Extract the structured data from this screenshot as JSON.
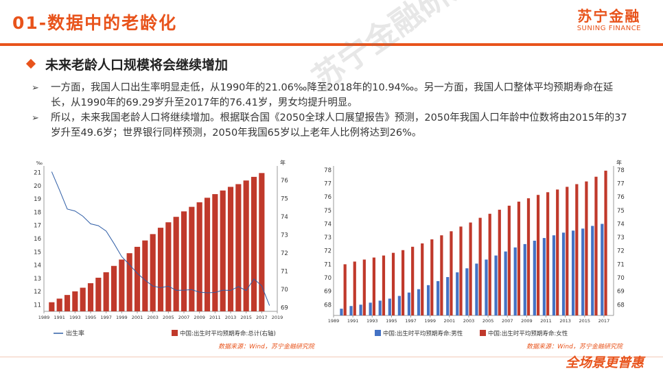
{
  "header": {
    "title": "01-数据中的老龄化",
    "logo_cn": "苏宁金融",
    "logo_en": "SUNING FINANCE"
  },
  "section": {
    "heading": "未来老龄人口规模将会继续增加",
    "bullet_symbol": "➢",
    "paragraphs": [
      "一方面，我国人口出生率明显走低，从1990年的21.06‰降至2018年的10.94‰。另一方面，我国人口整体平均预期寿命在延长，从1990年的69.29岁升至2017年的76.41岁，男女均提升明显。",
      "所以，未来我国老龄人口将继续增加。根据联合国《2050全球人口展望报告》预测，2050年我国人口年龄中位数将由2015年的37岁升至49.6岁；世界银行同样预测，2050年我国65岁以上老年人比例将达到26%。"
    ]
  },
  "watermark": "苏宁金融研究院",
  "footer": {
    "slogan": "全场景更普惠"
  },
  "colors": {
    "accent": "#e8531b",
    "bar_red": "#c0392b",
    "line_blue": "#2e5da6",
    "bar_blue": "#4472c4"
  },
  "chart_data": [
    {
      "type": "bar",
      "left_unit": "‰",
      "right_unit": "年",
      "x_ticks": [
        "1989",
        "1991",
        "1993",
        "1995",
        "1997",
        "1999",
        "2001",
        "2003",
        "2005",
        "2007",
        "2009",
        "2011",
        "2013",
        "2015",
        "2017",
        "2019"
      ],
      "left_axis": {
        "min": 10.5,
        "max": 21.5,
        "ticks": [
          11,
          12,
          13,
          14,
          15,
          16,
          17,
          18,
          19,
          20,
          21
        ]
      },
      "right_axis": {
        "min": 68.8,
        "max": 76.8,
        "ticks": [
          69,
          70,
          71,
          72,
          73,
          74,
          75,
          76
        ]
      },
      "series": [
        {
          "name": "出生率",
          "kind": "line",
          "axis": "left",
          "x": [
            1990,
            1991,
            1992,
            1993,
            1994,
            1995,
            1996,
            1997,
            1998,
            1999,
            2000,
            2001,
            2002,
            2003,
            2004,
            2005,
            2006,
            2007,
            2008,
            2009,
            2010,
            2011,
            2012,
            2013,
            2014,
            2015,
            2016,
            2017,
            2018
          ],
          "values": [
            21.06,
            19.68,
            18.24,
            18.09,
            17.7,
            17.12,
            16.98,
            16.57,
            15.64,
            14.64,
            14.03,
            13.38,
            12.86,
            12.41,
            12.29,
            12.4,
            12.09,
            12.1,
            12.14,
            11.95,
            11.9,
            11.93,
            12.1,
            12.08,
            12.37,
            12.07,
            12.95,
            12.43,
            10.94
          ]
        },
        {
          "name": "中国:出生时平均预期寿命:总计(右轴)",
          "kind": "bar",
          "axis": "right",
          "x": [
            1990,
            1991,
            1992,
            1993,
            1994,
            1995,
            1996,
            1997,
            1998,
            1999,
            2000,
            2001,
            2002,
            2003,
            2004,
            2005,
            2006,
            2007,
            2008,
            2009,
            2010,
            2011,
            2012,
            2013,
            2014,
            2015,
            2016,
            2017
          ],
          "values": [
            69.3,
            69.5,
            69.7,
            69.9,
            70.1,
            70.35,
            70.65,
            70.95,
            71.3,
            71.65,
            72.0,
            72.35,
            72.7,
            73.05,
            73.4,
            73.7,
            74.0,
            74.3,
            74.55,
            74.8,
            75.05,
            75.25,
            75.45,
            75.65,
            75.8,
            76.0,
            76.2,
            76.41
          ]
        }
      ],
      "source": "数据来源：Wind，苏宁金融研究院"
    },
    {
      "type": "bar",
      "right_unit": "年",
      "x_ticks": [
        "1989",
        "1991",
        "1993",
        "1995",
        "1997",
        "1999",
        "2001",
        "2003",
        "2005",
        "2007",
        "2009",
        "2011",
        "2013",
        "2015",
        "2017"
      ],
      "axis": {
        "min": 67.2,
        "max": 78.3,
        "ticks": [
          68,
          69,
          70,
          71,
          72,
          73,
          74,
          75,
          76,
          77,
          78
        ]
      },
      "series": [
        {
          "name": "中国:出生时平均预期寿命:男性",
          "x": [
            1990,
            1991,
            1992,
            1993,
            1994,
            1995,
            1996,
            1997,
            1998,
            1999,
            2000,
            2001,
            2002,
            2003,
            2004,
            2005,
            2006,
            2007,
            2008,
            2009,
            2010,
            2011,
            2012,
            2013,
            2014,
            2015,
            2016,
            2017
          ],
          "values": [
            67.7,
            67.9,
            68.0,
            68.15,
            68.3,
            68.45,
            68.65,
            68.9,
            69.15,
            69.45,
            69.75,
            70.05,
            70.4,
            70.7,
            71.05,
            71.35,
            71.65,
            71.95,
            72.25,
            72.5,
            72.75,
            72.95,
            73.15,
            73.35,
            73.5,
            73.65,
            73.85,
            74.0
          ]
        },
        {
          "name": "中国:出生时平均预期寿命:女性",
          "x": [
            1990,
            1991,
            1992,
            1993,
            1994,
            1995,
            1996,
            1997,
            1998,
            1999,
            2000,
            2001,
            2002,
            2003,
            2004,
            2005,
            2006,
            2007,
            2008,
            2009,
            2010,
            2011,
            2012,
            2013,
            2014,
            2015,
            2016,
            2017
          ],
          "values": [
            71.0,
            71.2,
            71.35,
            71.5,
            71.65,
            71.85,
            72.05,
            72.3,
            72.55,
            72.85,
            73.15,
            73.45,
            73.8,
            74.1,
            74.45,
            74.75,
            75.05,
            75.35,
            75.65,
            75.9,
            76.15,
            76.35,
            76.55,
            76.75,
            76.95,
            77.15,
            77.5,
            77.95
          ]
        }
      ],
      "source": "数据来源：Wind，苏宁金融研究院"
    }
  ]
}
